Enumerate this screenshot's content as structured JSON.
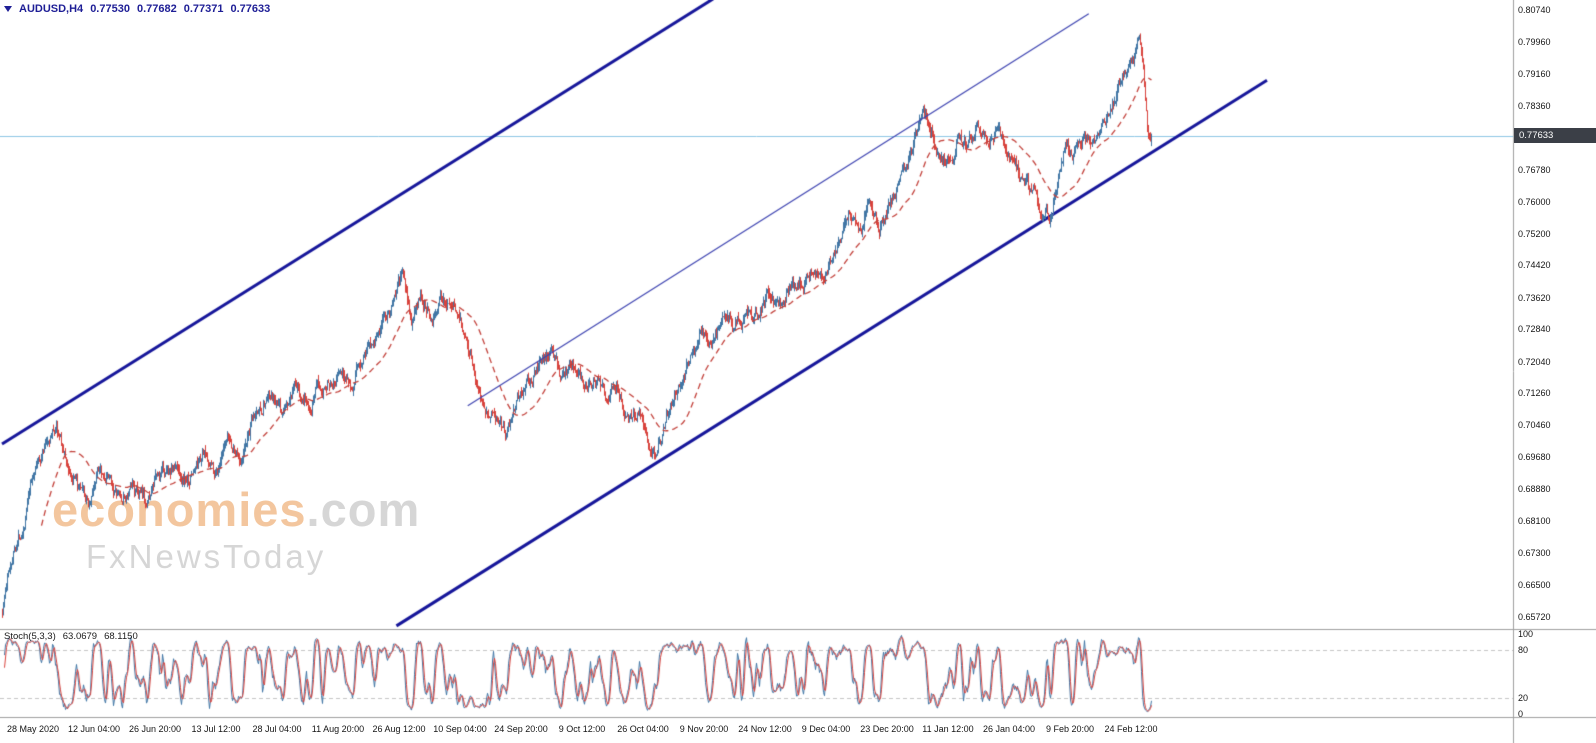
{
  "header": {
    "symbol": "AUDUSD,H4",
    "open": "0.77530",
    "high": "0.77682",
    "low": "0.77371",
    "close": "0.77633"
  },
  "watermark": {
    "brand": "economies",
    "brand_suffix": ".com",
    "tagline": "FxNewsToday"
  },
  "current_price": {
    "label": "0.77633",
    "value": 0.77633
  },
  "price_axis": {
    "labels": [
      "0.80740",
      "0.79960",
      "0.79160",
      "0.78360",
      "0.76780",
      "0.76000",
      "0.75200",
      "0.74420",
      "0.73620",
      "0.72840",
      "0.72040",
      "0.71260",
      "0.70460",
      "0.69680",
      "0.68880",
      "0.68100",
      "0.67300",
      "0.66500",
      "0.65720"
    ]
  },
  "time_axis": {
    "labels": [
      "28 May 2020",
      "12 Jun 04:00",
      "26 Jun 20:00",
      "13 Jul 12:00",
      "28 Jul 04:00",
      "11 Aug 20:00",
      "26 Aug 12:00",
      "10 Sep 04:00",
      "24 Sep 20:00",
      "9 Oct 12:00",
      "26 Oct 04:00",
      "9 Nov 20:00",
      "24 Nov 12:00",
      "9 Dec 04:00",
      "23 Dec 20:00",
      "11 Jan 12:00",
      "26 Jan 04:00",
      "9 Feb 20:00",
      "24 Feb 12:00"
    ]
  },
  "stoch_panel": {
    "label": "Stoch(5,3,3)",
    "main_value": "63.0679",
    "signal_value": "68.1150",
    "axis_labels": [
      "100",
      "80",
      "20",
      "0"
    ],
    "axis_values": [
      100,
      80,
      20,
      0
    ],
    "level_lines": [
      80,
      20
    ]
  },
  "chart_data": {
    "type": "candlestick",
    "symbol": "AUDUSD",
    "timeframe": "H4",
    "title": "AUDUSD H4 candlestick chart with ascending channel, SMA and Stochastic(5,3,3)",
    "bars": 1150,
    "ylim": [
      0.6572,
      0.8074
    ],
    "last_bar_ohlc": {
      "open": 0.7753,
      "high": 0.77682,
      "low": 0.77371,
      "close": 0.77633
    },
    "price_path": [
      [
        0.0,
        0.659
      ],
      [
        0.004,
        0.666
      ],
      [
        0.01,
        0.6745
      ],
      [
        0.018,
        0.68
      ],
      [
        0.028,
        0.6935
      ],
      [
        0.038,
        0.7005
      ],
      [
        0.047,
        0.7045
      ],
      [
        0.056,
        0.695
      ],
      [
        0.066,
        0.688
      ],
      [
        0.075,
        0.684
      ],
      [
        0.085,
        0.6955
      ],
      [
        0.094,
        0.69
      ],
      [
        0.104,
        0.6855
      ],
      [
        0.114,
        0.689
      ],
      [
        0.124,
        0.6855
      ],
      [
        0.134,
        0.6905
      ],
      [
        0.148,
        0.6945
      ],
      [
        0.162,
        0.691
      ],
      [
        0.174,
        0.6975
      ],
      [
        0.186,
        0.6935
      ],
      [
        0.197,
        0.7
      ],
      [
        0.207,
        0.6965
      ],
      [
        0.219,
        0.706
      ],
      [
        0.231,
        0.712
      ],
      [
        0.243,
        0.7075
      ],
      [
        0.256,
        0.713
      ],
      [
        0.268,
        0.7105
      ],
      [
        0.281,
        0.716
      ],
      [
        0.294,
        0.7185
      ],
      [
        0.306,
        0.715
      ],
      [
        0.317,
        0.724
      ],
      [
        0.329,
        0.729
      ],
      [
        0.339,
        0.7345
      ],
      [
        0.348,
        0.7415
      ],
      [
        0.356,
        0.73
      ],
      [
        0.364,
        0.736
      ],
      [
        0.374,
        0.733
      ],
      [
        0.384,
        0.736
      ],
      [
        0.394,
        0.7345
      ],
      [
        0.404,
        0.727
      ],
      [
        0.414,
        0.715
      ],
      [
        0.424,
        0.708
      ],
      [
        0.433,
        0.706
      ],
      [
        0.44,
        0.703
      ],
      [
        0.448,
        0.712
      ],
      [
        0.458,
        0.715
      ],
      [
        0.467,
        0.72
      ],
      [
        0.477,
        0.7235
      ],
      [
        0.487,
        0.716
      ],
      [
        0.497,
        0.719
      ],
      [
        0.507,
        0.715
      ],
      [
        0.517,
        0.717
      ],
      [
        0.527,
        0.712
      ],
      [
        0.535,
        0.7155
      ],
      [
        0.544,
        0.706
      ],
      [
        0.553,
        0.709
      ],
      [
        0.561,
        0.701
      ],
      [
        0.57,
        0.699
      ],
      [
        0.578,
        0.708
      ],
      [
        0.588,
        0.715
      ],
      [
        0.597,
        0.721
      ],
      [
        0.607,
        0.728
      ],
      [
        0.617,
        0.725
      ],
      [
        0.627,
        0.731
      ],
      [
        0.637,
        0.728
      ],
      [
        0.647,
        0.733
      ],
      [
        0.657,
        0.7305
      ],
      [
        0.667,
        0.7375
      ],
      [
        0.677,
        0.734
      ],
      [
        0.687,
        0.741
      ],
      [
        0.697,
        0.739
      ],
      [
        0.707,
        0.745
      ],
      [
        0.717,
        0.743
      ],
      [
        0.727,
        0.751
      ],
      [
        0.737,
        0.7565
      ],
      [
        0.747,
        0.754
      ],
      [
        0.755,
        0.76
      ],
      [
        0.763,
        0.7525
      ],
      [
        0.771,
        0.758
      ],
      [
        0.78,
        0.766
      ],
      [
        0.789,
        0.772
      ],
      [
        0.797,
        0.779
      ],
      [
        0.803,
        0.782
      ],
      [
        0.81,
        0.777
      ],
      [
        0.817,
        0.7715
      ],
      [
        0.824,
        0.769
      ],
      [
        0.832,
        0.776
      ],
      [
        0.84,
        0.773
      ],
      [
        0.848,
        0.778
      ],
      [
        0.856,
        0.7745
      ],
      [
        0.864,
        0.7775
      ],
      [
        0.872,
        0.774
      ],
      [
        0.88,
        0.77
      ],
      [
        0.888,
        0.7655
      ],
      [
        0.896,
        0.7615
      ],
      [
        0.904,
        0.758
      ],
      [
        0.911,
        0.7565
      ],
      [
        0.918,
        0.765
      ],
      [
        0.925,
        0.7735
      ],
      [
        0.932,
        0.77
      ],
      [
        0.94,
        0.776
      ],
      [
        0.947,
        0.774
      ],
      [
        0.954,
        0.777
      ],
      [
        0.961,
        0.7815
      ],
      [
        0.969,
        0.787
      ],
      [
        0.977,
        0.793
      ],
      [
        0.984,
        0.7965
      ],
      [
        0.99,
        0.8005
      ],
      [
        0.994,
        0.79
      ],
      [
        0.997,
        0.777
      ],
      [
        1.0,
        0.7763
      ]
    ],
    "moving_average": {
      "type": "SMA",
      "period": 40,
      "style": "dashed"
    },
    "annotations": {
      "channel_upper": {
        "from": [
          0.0,
          0.7
        ],
        "to": [
          0.64,
          0.814
        ]
      },
      "channel_lower": {
        "from": [
          0.343,
          0.655
        ],
        "to": [
          1.1,
          0.79
        ]
      },
      "trendline": {
        "from": [
          0.405,
          0.7095
        ],
        "to": [
          0.945,
          0.8065
        ]
      },
      "current_price_line": 0.77633
    },
    "indicator": {
      "name": "Stochastic",
      "params": [
        5,
        3,
        3
      ],
      "main": 63.0679,
      "signal": 68.115,
      "range": [
        0,
        100
      ],
      "levels": [
        80,
        20
      ]
    },
    "colors": {
      "bull": "#4176a5",
      "bear": "#d8423c",
      "ma": "#c2403a",
      "channel": "#16169a",
      "trendline": "#3d43b0",
      "price_line": "#8cc6e4",
      "stoch_main": "#4176a5",
      "stoch_signal": "#d8423c",
      "grid_dash": "#c4c4c4",
      "separator": "#9e9e9e",
      "axis_text": "#151515",
      "header_text": "#1e1e96",
      "badge_bg": "#3b3f47",
      "watermark_orange": "#f3c69e",
      "watermark_gray": "#d6d6d6"
    }
  }
}
